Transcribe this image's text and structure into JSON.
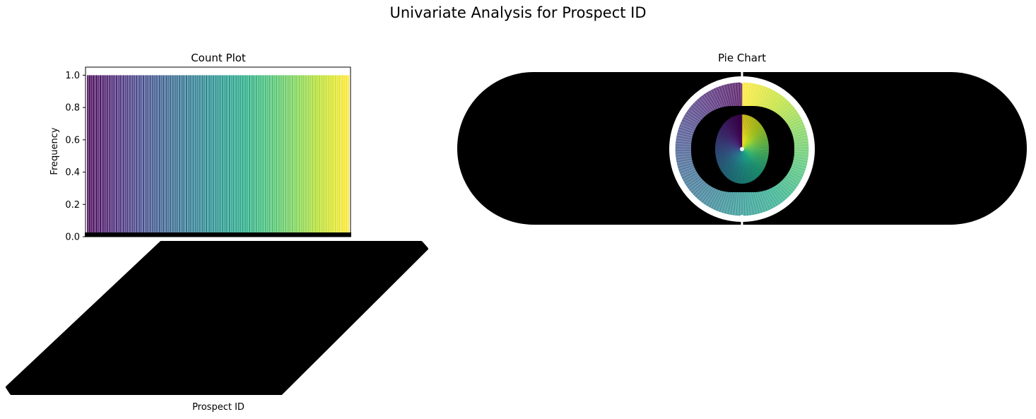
{
  "figure": {
    "title": "Univariate Analysis for Prospect ID"
  },
  "chart_data": [
    {
      "type": "bar",
      "title": "Count Plot",
      "xlabel": "Prospect ID",
      "ylabel": "Frequency",
      "ylim": [
        0,
        1.05
      ],
      "yticks": [
        "0.0",
        "0.2",
        "0.4",
        "0.6",
        "0.8",
        "1.0"
      ],
      "bar_count": 146,
      "bar_value": 1.0,
      "colormap": "viridis",
      "colors": {
        "start": "#440154",
        "mid": "#21918c",
        "end": "#fde725"
      },
      "xtick_labels_note": "overlapping unreadable rotated labels rendered as a solid black mass",
      "grid": false
    },
    {
      "type": "pie",
      "title": "Pie Chart",
      "slice_count": 146,
      "slice_value": 1.0,
      "colormap": "viridis",
      "alpha": 0.7,
      "labels_note": "overlapping unreadable slice labels rendered as a solid black mass",
      "colors": {
        "start": "#440154",
        "mid": "#21918c",
        "end": "#fde725"
      }
    }
  ]
}
